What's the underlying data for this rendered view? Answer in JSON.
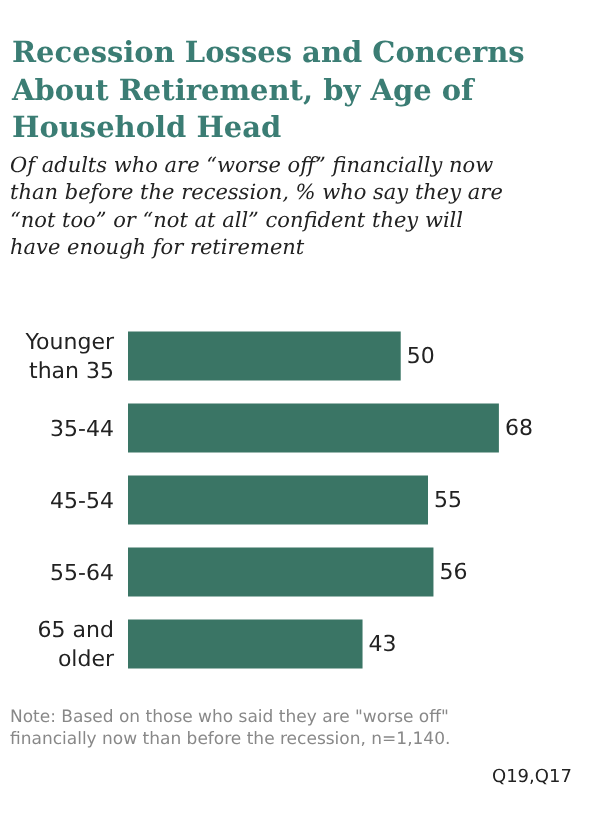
{
  "chart_data": {
    "type": "bar",
    "orientation": "horizontal",
    "title": "Recession Losses and Concerns About Retirement, by Age of Household Head",
    "subtitle": "Of adults who are “worse off” financially now than before the recession, % who say they are “not too” or “not at all” confident they will have enough for retirement",
    "categories": [
      "Younger than 35",
      "35-44",
      "45-54",
      "55-64",
      "65 and older"
    ],
    "values": [
      50,
      68,
      55,
      56,
      43
    ],
    "color": "#3a7565",
    "data_labels": true,
    "annotations": [
      "Note: Based on those who said they are \"worse off\" financially now than before the recession, n=1,140.",
      "Q19,Q17"
    ]
  }
}
